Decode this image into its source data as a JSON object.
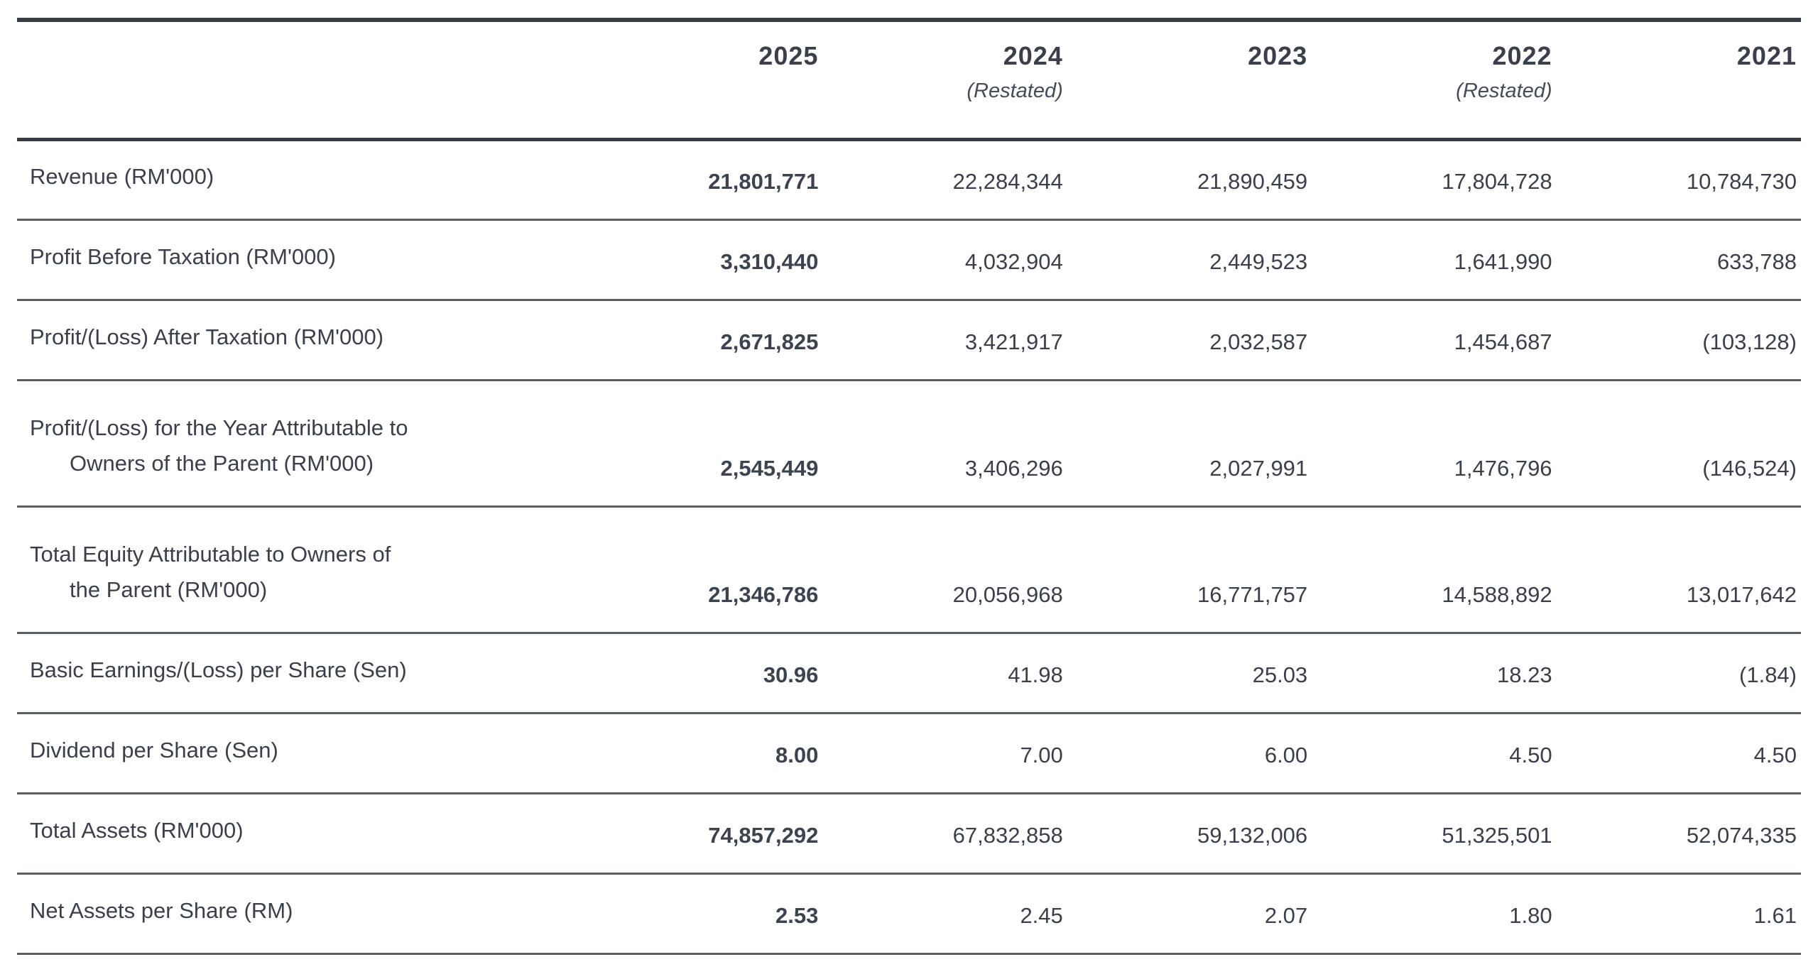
{
  "table": {
    "header": {
      "years": [
        "2025",
        "2024",
        "2023",
        "2022",
        "2021"
      ],
      "notes": [
        "",
        "(Restated)",
        "",
        "(Restated)",
        ""
      ]
    },
    "rows": [
      {
        "label_line1": "Revenue (RM'000)",
        "label_line2": "",
        "values": [
          "21,801,771",
          "22,284,344",
          "21,890,459",
          "17,804,728",
          "10,784,730"
        ]
      },
      {
        "label_line1": "Profit Before Taxation (RM'000)",
        "label_line2": "",
        "values": [
          "3,310,440",
          "4,032,904",
          "2,449,523",
          "1,641,990",
          "633,788"
        ]
      },
      {
        "label_line1": "Profit/(Loss) After Taxation (RM'000)",
        "label_line2": "",
        "values": [
          "2,671,825",
          "3,421,917",
          "2,032,587",
          "1,454,687",
          "(103,128)"
        ]
      },
      {
        "label_line1": "Profit/(Loss) for the Year Attributable to",
        "label_line2": "Owners of the Parent (RM'000)",
        "values": [
          "2,545,449",
          "3,406,296",
          "2,027,991",
          "1,476,796",
          "(146,524)"
        ]
      },
      {
        "label_line1": "Total Equity Attributable to Owners of",
        "label_line2": "the Parent (RM'000)",
        "values": [
          "21,346,786",
          "20,056,968",
          "16,771,757",
          "14,588,892",
          "13,017,642"
        ]
      },
      {
        "label_line1": "Basic Earnings/(Loss) per Share (Sen)",
        "label_line2": "",
        "values": [
          "30.96",
          "41.98",
          "25.03",
          "18.23",
          "(1.84)"
        ]
      },
      {
        "label_line1": "Dividend per Share (Sen)",
        "label_line2": "",
        "values": [
          "8.00",
          "7.00",
          "6.00",
          "4.50",
          "4.50"
        ]
      },
      {
        "label_line1": "Total Assets (RM'000)",
        "label_line2": "",
        "values": [
          "74,857,292",
          "67,832,858",
          "59,132,006",
          "51,325,501",
          "52,074,335"
        ]
      },
      {
        "label_line1": "Net Assets per Share (RM)",
        "label_line2": "",
        "values": [
          "2.53",
          "2.45",
          "2.07",
          "1.80",
          "1.61"
        ]
      }
    ],
    "colors": {
      "text": "#3a3f49",
      "heavy_rule": "#383d45",
      "light_rule": "#595d62"
    },
    "emphasis_column": "2025"
  }
}
